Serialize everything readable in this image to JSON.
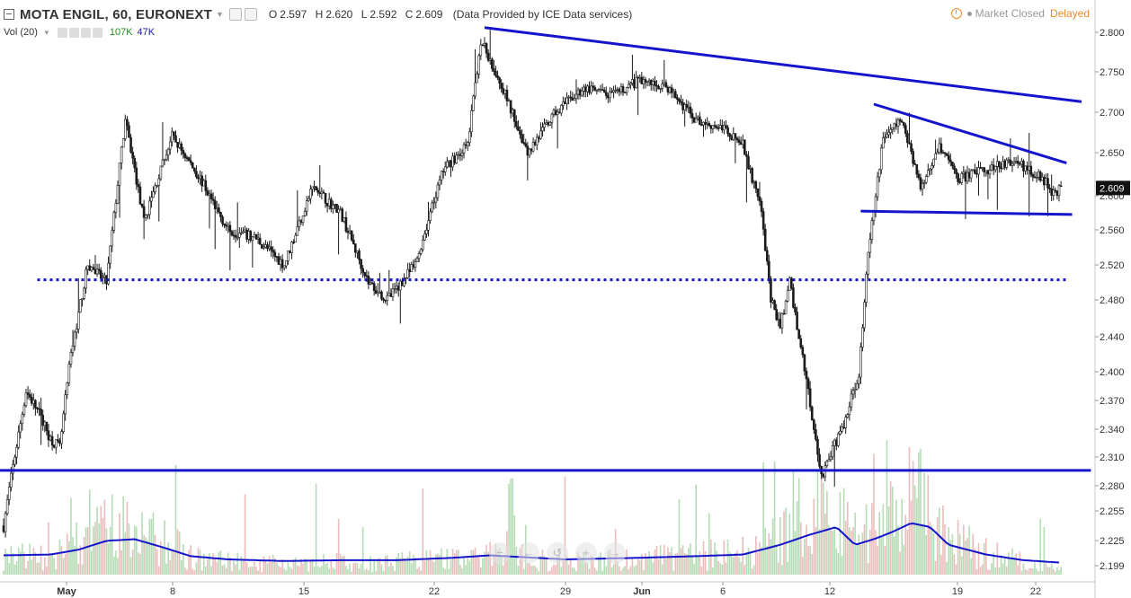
{
  "header": {
    "symbol": "MOTA ENGIL, 60, EURONEXT",
    "ohlc": [
      {
        "key": "O",
        "value": "2.597"
      },
      {
        "key": "H",
        "value": "2.620"
      },
      {
        "key": "L",
        "value": "2.592"
      },
      {
        "key": "C",
        "value": "2.609"
      }
    ],
    "provider": "(Data Provided by ICE Data services)"
  },
  "volume_header": {
    "label": "Vol (20)",
    "value1": "107K",
    "value2": "47K"
  },
  "status": {
    "market": "Market Closed",
    "delay": "Delayed"
  },
  "nav_buttons": [
    {
      "icon": "zoom-out-icon",
      "glyph": "−"
    },
    {
      "icon": "scroll-left-icon",
      "glyph": "←"
    },
    {
      "icon": "reset-icon",
      "glyph": "↺"
    },
    {
      "icon": "zoom-in-icon",
      "glyph": "+"
    },
    {
      "icon": "scroll-right-icon",
      "glyph": "→"
    }
  ],
  "colors": {
    "up": "#1a1a1a",
    "down": "#1a1a1a",
    "drawing": "#1414cc",
    "volume_up": "#b5dcb5",
    "volume_down": "#ebbcbc",
    "volume_ma": "#1414cc",
    "last_price_bg": "#111111"
  },
  "chart_data": {
    "type": "candlestick",
    "ylim": [
      2.19,
      2.82
    ],
    "y_ticks": [
      "2.800",
      "2.750",
      "2.700",
      "2.650",
      "2.600",
      "2.560",
      "2.520",
      "2.480",
      "2.440",
      "2.400",
      "2.370",
      "2.340",
      "2.310",
      "2.280",
      "2.255",
      "2.225",
      "2.199"
    ],
    "x_ticks": [
      "May",
      "8",
      "15",
      "22",
      "29",
      "Jun",
      "6",
      "12",
      "19",
      "22"
    ],
    "last_price": "2.609",
    "price_path": [
      {
        "bar": 0,
        "price": 2.24
      },
      {
        "bar": 5,
        "price": 2.3
      },
      {
        "bar": 12,
        "price": 2.38
      },
      {
        "bar": 18,
        "price": 2.36
      },
      {
        "bar": 25,
        "price": 2.33
      },
      {
        "bar": 30,
        "price": 2.32
      },
      {
        "bar": 36,
        "price": 2.42
      },
      {
        "bar": 45,
        "price": 2.52
      },
      {
        "bar": 55,
        "price": 2.5
      },
      {
        "bar": 65,
        "price": 2.69
      },
      {
        "bar": 75,
        "price": 2.57
      },
      {
        "bar": 90,
        "price": 2.67
      },
      {
        "bar": 105,
        "price": 2.62
      },
      {
        "bar": 120,
        "price": 2.56
      },
      {
        "bar": 135,
        "price": 2.55
      },
      {
        "bar": 150,
        "price": 2.52
      },
      {
        "bar": 165,
        "price": 2.61
      },
      {
        "bar": 180,
        "price": 2.58
      },
      {
        "bar": 195,
        "price": 2.5
      },
      {
        "bar": 205,
        "price": 2.48
      },
      {
        "bar": 220,
        "price": 2.52
      },
      {
        "bar": 235,
        "price": 2.63
      },
      {
        "bar": 248,
        "price": 2.66
      },
      {
        "bar": 255,
        "price": 2.79
      },
      {
        "bar": 265,
        "price": 2.74
      },
      {
        "bar": 280,
        "price": 2.65
      },
      {
        "bar": 295,
        "price": 2.7
      },
      {
        "bar": 310,
        "price": 2.73
      },
      {
        "bar": 325,
        "price": 2.72
      },
      {
        "bar": 340,
        "price": 2.74
      },
      {
        "bar": 355,
        "price": 2.73
      },
      {
        "bar": 370,
        "price": 2.69
      },
      {
        "bar": 385,
        "price": 2.68
      },
      {
        "bar": 395,
        "price": 2.66
      },
      {
        "bar": 405,
        "price": 2.58
      },
      {
        "bar": 410,
        "price": 2.48
      },
      {
        "bar": 415,
        "price": 2.45
      },
      {
        "bar": 420,
        "price": 2.5
      },
      {
        "bar": 430,
        "price": 2.38
      },
      {
        "bar": 437,
        "price": 2.29
      },
      {
        "bar": 450,
        "price": 2.35
      },
      {
        "bar": 457,
        "price": 2.4
      },
      {
        "bar": 462,
        "price": 2.53
      },
      {
        "bar": 470,
        "price": 2.67
      },
      {
        "bar": 480,
        "price": 2.69
      },
      {
        "bar": 490,
        "price": 2.61
      },
      {
        "bar": 500,
        "price": 2.66
      },
      {
        "bar": 510,
        "price": 2.62
      },
      {
        "bar": 525,
        "price": 2.63
      },
      {
        "bar": 540,
        "price": 2.64
      },
      {
        "bar": 555,
        "price": 2.62
      },
      {
        "bar": 562,
        "price": 2.6
      },
      {
        "bar": 565,
        "price": 2.609
      }
    ],
    "bar_count": 566,
    "annotations": [
      {
        "type": "trendline",
        "from": {
          "bar": 257,
          "price": 2.806
        },
        "to": {
          "bar": 576,
          "price": 2.713
        }
      },
      {
        "type": "trendline",
        "from": {
          "bar": 465,
          "price": 2.71
        },
        "to": {
          "bar": 568,
          "price": 2.638
        }
      },
      {
        "type": "trendline",
        "from": {
          "bar": 458,
          "price": 2.582
        },
        "to": {
          "bar": 571,
          "price": 2.578
        }
      },
      {
        "type": "horizontal-dotted",
        "price": 2.503,
        "from_bar": 18,
        "to_bar": 568
      },
      {
        "type": "horizontal",
        "price": 2.296,
        "from_bar": 0,
        "to_bar": 581
      }
    ],
    "volume": {
      "ma_path": [
        {
          "bar": 0,
          "value": 0.15
        },
        {
          "bar": 25,
          "value": 0.16
        },
        {
          "bar": 40,
          "value": 0.22
        },
        {
          "bar": 55,
          "value": 0.33
        },
        {
          "bar": 70,
          "value": 0.35
        },
        {
          "bar": 85,
          "value": 0.25
        },
        {
          "bar": 100,
          "value": 0.14
        },
        {
          "bar": 120,
          "value": 0.1
        },
        {
          "bar": 150,
          "value": 0.08
        },
        {
          "bar": 180,
          "value": 0.09
        },
        {
          "bar": 210,
          "value": 0.09
        },
        {
          "bar": 240,
          "value": 0.12
        },
        {
          "bar": 260,
          "value": 0.15
        },
        {
          "bar": 300,
          "value": 0.1
        },
        {
          "bar": 340,
          "value": 0.12
        },
        {
          "bar": 370,
          "value": 0.14
        },
        {
          "bar": 395,
          "value": 0.16
        },
        {
          "bar": 415,
          "value": 0.28
        },
        {
          "bar": 430,
          "value": 0.4
        },
        {
          "bar": 445,
          "value": 0.5
        },
        {
          "bar": 455,
          "value": 0.28
        },
        {
          "bar": 465,
          "value": 0.35
        },
        {
          "bar": 475,
          "value": 0.44
        },
        {
          "bar": 485,
          "value": 0.55
        },
        {
          "bar": 495,
          "value": 0.5
        },
        {
          "bar": 505,
          "value": 0.28
        },
        {
          "bar": 525,
          "value": 0.16
        },
        {
          "bar": 545,
          "value": 0.09
        },
        {
          "bar": 565,
          "value": 0.06
        }
      ]
    }
  }
}
